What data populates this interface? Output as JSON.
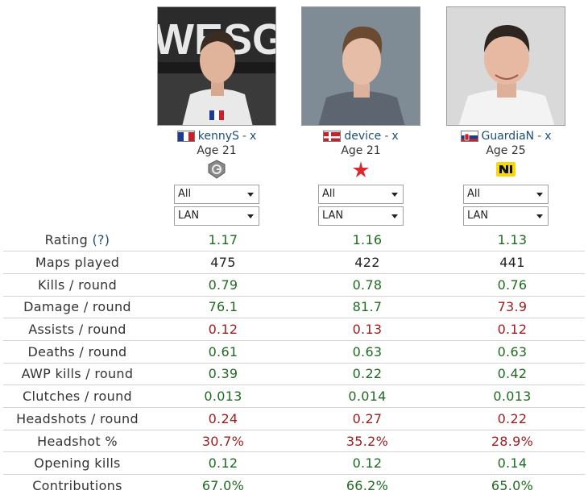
{
  "players": [
    {
      "name": "kennyS",
      "separator": "-",
      "remove_label": "x",
      "age": "Age 21",
      "flag": "france-flag",
      "team_logo": "g2-logo",
      "filters": [
        "All",
        "LAN"
      ]
    },
    {
      "name": "device",
      "separator": "-",
      "remove_label": "x",
      "age": "Age 21",
      "flag": "denmark-flag",
      "team_logo": "astralis-logo",
      "filters": [
        "All",
        "LAN"
      ]
    },
    {
      "name": "GuardiaN",
      "separator": "-",
      "remove_label": "x",
      "age": "Age 25",
      "flag": "slovakia-flag",
      "team_logo": "navi-logo",
      "filters": [
        "All",
        "LAN"
      ]
    }
  ],
  "stats": [
    {
      "label": "Rating",
      "help": "(?)",
      "values": [
        "1.17",
        "1.16",
        "1.13"
      ],
      "status": [
        "good",
        "good",
        "good"
      ]
    },
    {
      "label": "Maps played",
      "help": "",
      "values": [
        "475",
        "422",
        "441"
      ],
      "status": [
        "neutral",
        "neutral",
        "neutral"
      ]
    },
    {
      "label": "Kills / round",
      "help": "",
      "values": [
        "0.79",
        "0.78",
        "0.76"
      ],
      "status": [
        "good",
        "good",
        "good"
      ]
    },
    {
      "label": "Damage / round",
      "help": "",
      "values": [
        "76.1",
        "81.7",
        "73.9"
      ],
      "status": [
        "good",
        "good",
        "bad"
      ]
    },
    {
      "label": "Assists / round",
      "help": "",
      "values": [
        "0.12",
        "0.13",
        "0.12"
      ],
      "status": [
        "bad",
        "bad",
        "bad"
      ]
    },
    {
      "label": "Deaths / round",
      "help": "",
      "values": [
        "0.61",
        "0.63",
        "0.63"
      ],
      "status": [
        "good",
        "good",
        "good"
      ]
    },
    {
      "label": "AWP kills / round",
      "help": "",
      "values": [
        "0.39",
        "0.22",
        "0.42"
      ],
      "status": [
        "good",
        "good",
        "good"
      ]
    },
    {
      "label": "Clutches / round",
      "help": "",
      "values": [
        "0.013",
        "0.014",
        "0.013"
      ],
      "status": [
        "good",
        "good",
        "good"
      ]
    },
    {
      "label": "Headshots / round",
      "help": "",
      "values": [
        "0.24",
        "0.27",
        "0.22"
      ],
      "status": [
        "bad",
        "bad",
        "bad"
      ]
    },
    {
      "label": "Headshot %",
      "help": "",
      "values": [
        "30.7%",
        "35.2%",
        "28.9%"
      ],
      "status": [
        "bad",
        "bad",
        "bad"
      ]
    },
    {
      "label": "Opening kills",
      "help": "",
      "values": [
        "0.12",
        "0.12",
        "0.14"
      ],
      "status": [
        "good",
        "good",
        "good"
      ]
    },
    {
      "label": "Contributions",
      "help": "",
      "values": [
        "67.0%",
        "66.2%",
        "65.0%"
      ],
      "status": [
        "good",
        "good",
        "good"
      ]
    }
  ],
  "colors": {
    "good": "#1f6b1f",
    "bad": "#9b1c1c",
    "neutral": "#222222",
    "link": "#1d4f78"
  }
}
